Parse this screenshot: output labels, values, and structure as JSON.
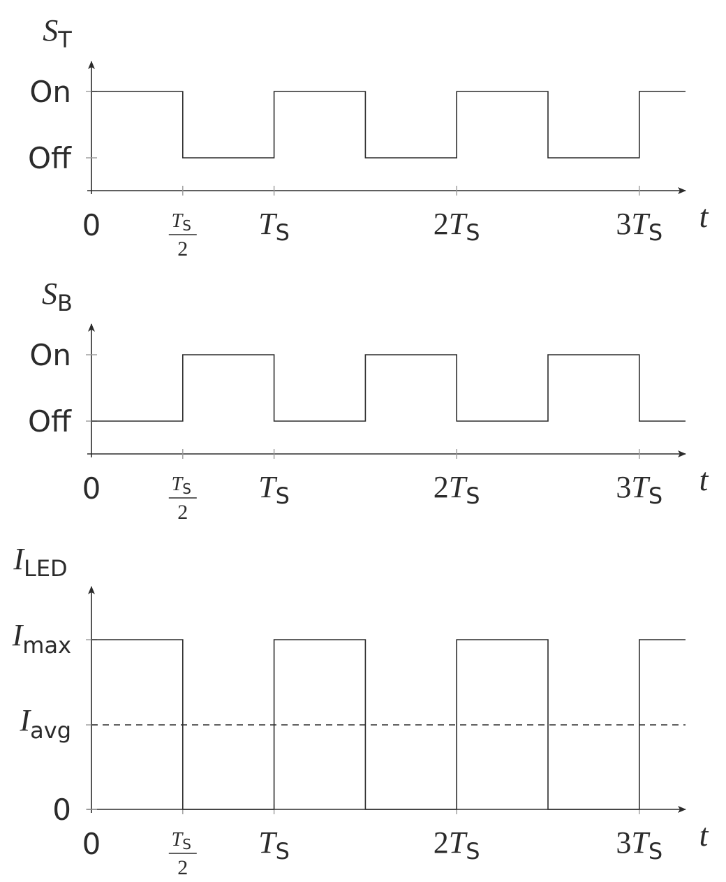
{
  "time_axis": {
    "label": "t",
    "ticks": [
      {
        "kind": "plain",
        "text": "0"
      },
      {
        "kind": "fraction",
        "num": "T",
        "num_sub": "S",
        "den": "2"
      },
      {
        "kind": "sym",
        "coef": "",
        "sym": "T",
        "sub": "S"
      },
      {
        "kind": "sym",
        "coef": "2",
        "sym": "T",
        "sub": "S"
      },
      {
        "kind": "sym",
        "coef": "3",
        "sym": "T",
        "sub": "S"
      }
    ]
  },
  "panels": [
    {
      "id": "st",
      "title": {
        "sym": "S",
        "sub": "T"
      },
      "levels": [
        {
          "kind": "text",
          "text": "On"
        },
        {
          "kind": "text",
          "text": "Off"
        }
      ],
      "start_level": "high"
    },
    {
      "id": "sb",
      "title": {
        "sym": "S",
        "sub": "B"
      },
      "levels": [
        {
          "kind": "text",
          "text": "On"
        },
        {
          "kind": "text",
          "text": "Off"
        }
      ],
      "start_level": "low"
    },
    {
      "id": "iled",
      "title": {
        "sym": "I",
        "sub": "LED"
      },
      "levels": [
        {
          "kind": "sym",
          "sym": "I",
          "sub": "max"
        },
        {
          "kind": "sym",
          "sym": "I",
          "sub": "avg"
        },
        {
          "kind": "text",
          "text": "0"
        }
      ],
      "start_level": "high",
      "dashed_level": "avg"
    }
  ],
  "colors": {
    "line": "#2b2b2b",
    "tick": "#9a9a9a"
  }
}
